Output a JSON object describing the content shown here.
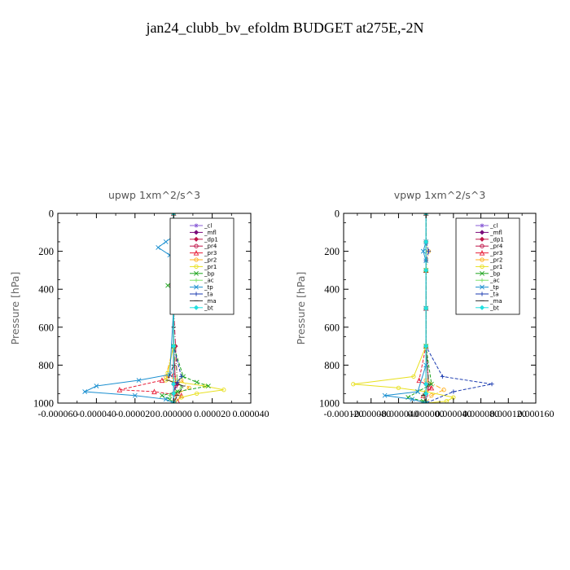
{
  "title": "jan24_clubb_bv_efoldm  BUDGET at275E,-2N",
  "colors": {
    "_cl": "#8a5cd6",
    "_mfl": "#7a0a7a",
    "_dp1": "#c0164a",
    "_pr4": "#c0164a",
    "_pr3": "#e8203a",
    "_pr2": "#ffb020",
    "_pr1": "#e8e020",
    "_bp": "#1fa51f",
    "_ac": "#7ee06a",
    "_tp": "#1a8fd0",
    "_ta": "#1a3ab0",
    "_ma": "#333333",
    "_bt": "#20e0e0"
  },
  "chart_data": [
    {
      "type": "line",
      "title": "upwp   1xm^2/s^3",
      "ylabel": "Pressure [hPa]",
      "xlim": [
        -6e-05,
        4e-05
      ],
      "ylim": [
        1000,
        0
      ],
      "x_ticks": [
        "-0.000060",
        "-0.000040",
        "-0.000020",
        "0.000000",
        "0.000020",
        "0.000040"
      ],
      "x_tick_values": [
        -6e-05,
        -4e-05,
        -2e-05,
        0,
        2e-05,
        4e-05
      ],
      "y_ticks": [
        "0",
        "200",
        "400",
        "600",
        "800",
        "1000"
      ],
      "y_tick_values": [
        0,
        200,
        400,
        600,
        800,
        1000
      ],
      "legend": [
        "_cl",
        "_mfl",
        "_dp1",
        "_pr4",
        "_pr3",
        "_pr2",
        "_pr1",
        "_bp",
        "_ac",
        "_tp",
        "_ta",
        "_ma",
        "_bt"
      ],
      "legend_position": "top-right",
      "series": [
        {
          "name": "_cl",
          "x": [
            0,
            0,
            0,
            0,
            0,
            0,
            0,
            0
          ],
          "y": [
            0,
            150,
            300,
            500,
            700,
            900,
            950,
            1000
          ]
        },
        {
          "name": "_mfl",
          "x": [
            0,
            0,
            0,
            0,
            0,
            0,
            0,
            0
          ],
          "y": [
            0,
            150,
            300,
            500,
            700,
            900,
            950,
            1000
          ]
        },
        {
          "name": "_dp1",
          "x": [
            0,
            0,
            0,
            0,
            1e-06,
            2e-06,
            1e-06,
            0
          ],
          "y": [
            0,
            150,
            300,
            500,
            700,
            900,
            950,
            1000
          ]
        },
        {
          "name": "_pr4",
          "x": [
            0,
            0,
            -1e-06,
            0,
            0,
            1e-06,
            0,
            0
          ],
          "y": [
            0,
            200,
            380,
            500,
            700,
            900,
            950,
            1000
          ]
        },
        {
          "name": "_pr3",
          "x": [
            0,
            0,
            0,
            0,
            0,
            -6e-06,
            -2.8e-05,
            -1e-05,
            4e-06,
            2e-06,
            0
          ],
          "y": [
            0,
            300,
            500,
            700,
            850,
            880,
            930,
            940,
            960,
            990,
            1000
          ]
        },
        {
          "name": "_pr2",
          "x": [
            0,
            0,
            0,
            0,
            -4e-06,
            4e-06,
            8e-06,
            2e-06,
            0
          ],
          "y": [
            0,
            300,
            500,
            700,
            860,
            880,
            920,
            950,
            1000
          ]
        },
        {
          "name": "_pr1",
          "x": [
            0,
            0,
            4e-06,
            7e-06,
            4e-06,
            1e-06,
            0,
            0,
            -3e-06,
            -4e-06,
            1.6e-05,
            2.6e-05,
            1.2e-05,
            4e-06,
            0
          ],
          "y": [
            0,
            100,
            150,
            180,
            220,
            300,
            400,
            700,
            840,
            880,
            910,
            930,
            950,
            970,
            1000
          ]
        },
        {
          "name": "_bp",
          "x": [
            0,
            0,
            0,
            -3e-06,
            0,
            0,
            5e-06,
            1.2e-05,
            1.8e-05,
            2e-06,
            -6e-06,
            -2e-06,
            0
          ],
          "y": [
            0,
            200,
            360,
            380,
            400,
            700,
            860,
            890,
            910,
            940,
            960,
            980,
            1000
          ]
        },
        {
          "name": "_ac",
          "x": [
            0,
            0,
            0,
            0,
            2e-06,
            4e-06,
            -2e-06,
            0
          ],
          "y": [
            0,
            300,
            500,
            700,
            880,
            920,
            960,
            1000
          ]
        },
        {
          "name": "_tp",
          "x": [
            0,
            0,
            -4e-06,
            -8e-06,
            -2e-06,
            0,
            0,
            -2e-06,
            -1.8e-05,
            -4e-05,
            -4.6e-05,
            -2e-05,
            -4e-06,
            0
          ],
          "y": [
            0,
            120,
            150,
            180,
            220,
            300,
            500,
            850,
            880,
            910,
            940,
            960,
            980,
            1000
          ]
        },
        {
          "name": "_ta",
          "x": [
            0,
            0,
            1e-06,
            0,
            0,
            4e-06,
            2e-06,
            0,
            0
          ],
          "y": [
            0,
            150,
            250,
            500,
            700,
            860,
            890,
            950,
            1000
          ]
        },
        {
          "name": "_ma",
          "x": [
            0,
            0,
            0,
            0,
            0,
            -3e-06,
            5e-06,
            2e-06,
            0
          ],
          "y": [
            0,
            200,
            400,
            600,
            800,
            880,
            910,
            960,
            1000
          ]
        },
        {
          "name": "_bt",
          "x": [
            0,
            0,
            0,
            0,
            0,
            0,
            0,
            0
          ],
          "y": [
            0,
            150,
            300,
            500,
            700,
            900,
            950,
            1000
          ]
        }
      ]
    },
    {
      "type": "line",
      "title": "vpwp   1xm^2/s^3",
      "ylabel": "Pressure [hPa]",
      "xlim": [
        -0.00012,
        0.00016
      ],
      "ylim": [
        1000,
        0
      ],
      "x_ticks": [
        "-0.000120",
        "-0.000080",
        "-0.000040",
        "0.000000",
        "0.000040",
        "0.000080",
        "0.000120",
        "0.000160"
      ],
      "x_tick_values": [
        -0.00012,
        -8e-05,
        -4e-05,
        0,
        4e-05,
        8e-05,
        0.00012,
        0.00016
      ],
      "y_ticks": [
        "0",
        "200",
        "400",
        "600",
        "800",
        "1000"
      ],
      "y_tick_values": [
        0,
        200,
        400,
        600,
        800,
        1000
      ],
      "legend": [
        "_cl",
        "_mfl",
        "_dp1",
        "_pr4",
        "_pr3",
        "_pr2",
        "_pr1",
        "_bp",
        "_ac",
        "_tp",
        "_ta",
        "_ma",
        "_bt"
      ],
      "legend_position": "top-right",
      "series": [
        {
          "name": "_cl",
          "x": [
            0,
            0,
            0,
            0,
            0,
            0,
            0,
            0
          ],
          "y": [
            0,
            150,
            300,
            500,
            700,
            900,
            950,
            1000
          ]
        },
        {
          "name": "_mfl",
          "x": [
            0,
            0,
            0,
            0,
            0,
            0,
            0,
            0
          ],
          "y": [
            0,
            150,
            300,
            500,
            700,
            900,
            950,
            1000
          ]
        },
        {
          "name": "_dp1",
          "x": [
            0,
            0,
            0,
            0,
            0,
            0,
            0,
            0
          ],
          "y": [
            0,
            150,
            300,
            500,
            700,
            900,
            950,
            1000
          ]
        },
        {
          "name": "_pr4",
          "x": [
            0,
            0,
            0,
            0,
            0,
            4e-06,
            0,
            0
          ],
          "y": [
            0,
            150,
            300,
            500,
            700,
            920,
            960,
            1000
          ]
        },
        {
          "name": "_pr3",
          "x": [
            0,
            0,
            0,
            0,
            -1e-05,
            8e-06,
            -4e-06,
            0
          ],
          "y": [
            0,
            300,
            500,
            700,
            880,
            920,
            960,
            1000
          ]
        },
        {
          "name": "_pr2",
          "x": [
            0,
            0,
            4e-06,
            0,
            0,
            0,
            2.6e-05,
            8e-06,
            0
          ],
          "y": [
            0,
            150,
            200,
            300,
            700,
            880,
            930,
            960,
            1000
          ]
        },
        {
          "name": "_pr1",
          "x": [
            0,
            0,
            0,
            0,
            -1.8e-05,
            -0.000106,
            -4e-05,
            0,
            4e-05,
            3e-05,
            0
          ],
          "y": [
            0,
            300,
            500,
            700,
            860,
            900,
            920,
            940,
            970,
            990,
            1000
          ]
        },
        {
          "name": "_bp",
          "x": [
            0,
            0,
            0,
            0,
            8e-06,
            -1.2e-05,
            -2.6e-05,
            -4e-06,
            0
          ],
          "y": [
            0,
            300,
            500,
            700,
            900,
            940,
            970,
            990,
            1000
          ]
        },
        {
          "name": "_ac",
          "x": [
            0,
            0,
            0,
            0,
            4e-06,
            -4e-06,
            0
          ],
          "y": [
            0,
            300,
            500,
            700,
            900,
            960,
            1000
          ]
        },
        {
          "name": "_tp",
          "x": [
            0,
            0,
            -4e-06,
            0,
            0,
            0,
            -1.2e-05,
            -6e-05,
            -2e-05,
            0
          ],
          "y": [
            0,
            150,
            200,
            250,
            500,
            800,
            940,
            960,
            980,
            1000
          ]
        },
        {
          "name": "_ta",
          "x": [
            0,
            0,
            4e-06,
            0,
            0,
            2.4e-05,
            9.6e-05,
            4e-05,
            0
          ],
          "y": [
            0,
            150,
            200,
            250,
            700,
            860,
            900,
            940,
            1000
          ]
        },
        {
          "name": "_ma",
          "x": [
            0,
            0,
            0,
            0,
            4e-06,
            -4e-06,
            0
          ],
          "y": [
            0,
            300,
            500,
            700,
            900,
            960,
            1000
          ]
        },
        {
          "name": "_bt",
          "x": [
            0,
            0,
            0,
            0,
            0,
            0,
            0,
            0
          ],
          "y": [
            0,
            150,
            300,
            500,
            700,
            900,
            950,
            1000
          ]
        }
      ]
    }
  ]
}
